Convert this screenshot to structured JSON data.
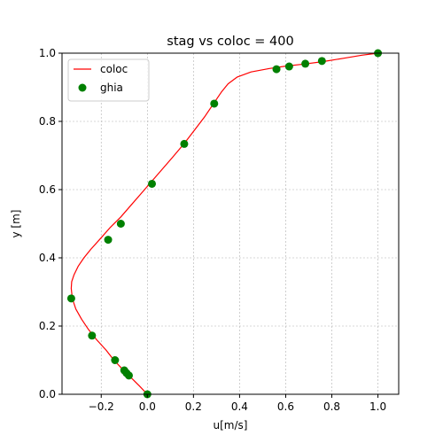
{
  "chart_data": {
    "type": "line",
    "title": "stag vs coloc = 400",
    "xlabel": "u[m/s]",
    "ylabel": "y [m]",
    "xlim": [
      -0.37,
      1.09
    ],
    "ylim": [
      0,
      1
    ],
    "xticks": [
      -0.2,
      0.0,
      0.2,
      0.4,
      0.6,
      0.8,
      1.0
    ],
    "xtick_labels": [
      "−0.2",
      "0.0",
      "0.2",
      "0.4",
      "0.6",
      "0.8",
      "1.0"
    ],
    "yticks": [
      0.0,
      0.2,
      0.4,
      0.6,
      0.8,
      1.0
    ],
    "ytick_labels": [
      "0.0",
      "0.2",
      "0.4",
      "0.6",
      "0.8",
      "1.0"
    ],
    "grid": true,
    "legend": {
      "position": "top-left",
      "entries": [
        "coloc",
        "ghia"
      ]
    },
    "series": [
      {
        "name": "coloc",
        "kind": "line",
        "color": "#ff0000",
        "x": [
          0.0,
          -0.035,
          -0.065,
          -0.09,
          -0.11,
          -0.145,
          -0.18,
          -0.22,
          -0.255,
          -0.285,
          -0.31,
          -0.325,
          -0.33,
          -0.328,
          -0.318,
          -0.3,
          -0.275,
          -0.245,
          -0.205,
          -0.16,
          -0.115,
          -0.07,
          -0.025,
          0.02,
          0.065,
          0.11,
          0.16,
          0.205,
          0.25,
          0.29,
          0.32,
          0.35,
          0.39,
          0.45,
          0.53,
          0.6,
          0.68,
          0.76,
          0.85,
          0.93,
          1.0
        ],
        "y": [
          0.0,
          0.025,
          0.045,
          0.06,
          0.075,
          0.1,
          0.13,
          0.16,
          0.19,
          0.22,
          0.25,
          0.28,
          0.31,
          0.33,
          0.35,
          0.375,
          0.4,
          0.425,
          0.455,
          0.49,
          0.52,
          0.555,
          0.59,
          0.625,
          0.66,
          0.695,
          0.735,
          0.775,
          0.815,
          0.855,
          0.885,
          0.91,
          0.93,
          0.945,
          0.955,
          0.962,
          0.968,
          0.975,
          0.985,
          0.994,
          1.0
        ]
      },
      {
        "name": "ghia",
        "kind": "scatter",
        "color": "#008000",
        "x": [
          0.0,
          -0.08,
          -0.09,
          -0.1,
          -0.14,
          -0.24,
          -0.33,
          -0.17,
          -0.115,
          0.02,
          0.16,
          0.29,
          0.56,
          0.615,
          0.685,
          0.757,
          1.0
        ],
        "y": [
          0.0,
          0.055,
          0.062,
          0.07,
          0.1,
          0.172,
          0.281,
          0.453,
          0.5,
          0.617,
          0.734,
          0.852,
          0.953,
          0.961,
          0.969,
          0.977,
          1.0
        ]
      }
    ]
  }
}
